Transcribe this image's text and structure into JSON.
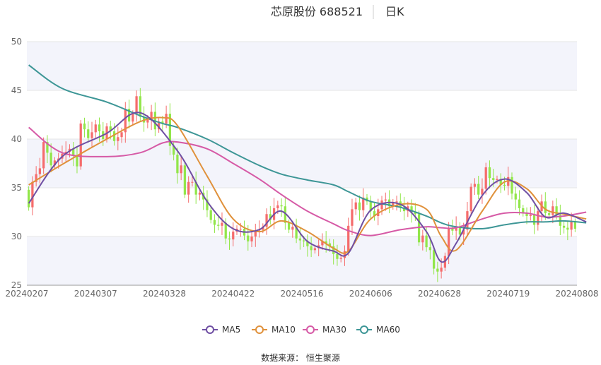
{
  "header": {
    "stock_name_code": "芯原股份 688521",
    "period": "日K"
  },
  "source_text": "数据来源： 恒生聚源",
  "chart_data": {
    "type": "candlestick",
    "x_tick_labels": [
      "20240207",
      "20240307",
      "20240328",
      "20240422",
      "20240516",
      "20240606",
      "20240628",
      "20240719",
      "20240808"
    ],
    "y_tick_labels": [
      "25",
      "30",
      "35",
      "40",
      "45",
      "50"
    ],
    "ylim": [
      25,
      50
    ],
    "grid": "horizontal",
    "legend_position": "bottom-center",
    "colors": {
      "up": "#f56c6c",
      "down": "#92e64a"
    },
    "legend": [
      {
        "name": "MA5",
        "color": "#6f4fa3"
      },
      {
        "name": "MA10",
        "color": "#e0913b"
      },
      {
        "name": "MA30",
        "color": "#d65aa6"
      },
      {
        "name": "MA60",
        "color": "#3d9696"
      }
    ],
    "closes": [
      33.0,
      35.6,
      36.4,
      37.0,
      39.7,
      38.6,
      37.3,
      37.8,
      38.0,
      38.5,
      38.7,
      39.0,
      38.3,
      37.2,
      41.6,
      41.0,
      40.1,
      40.7,
      41.5,
      40.8,
      40.0,
      41.3,
      40.8,
      39.8,
      40.2,
      40.7,
      43.1,
      41.8,
      42.6,
      44.4,
      42.3,
      41.7,
      42.0,
      42.8,
      41.0,
      41.8,
      41.6,
      42.6,
      39.3,
      38.4,
      36.5,
      37.3,
      34.3,
      35.6,
      35.6,
      34.3,
      34.5,
      33.8,
      32.7,
      31.7,
      31.2,
      31.1,
      31.4,
      29.8,
      29.7,
      30.5,
      30.8,
      30.8,
      30.1,
      29.5,
      30.0,
      30.6,
      30.7,
      31.0,
      32.3,
      31.7,
      32.9,
      33.2,
      33.1,
      31.4,
      30.7,
      31.0,
      29.8,
      29.6,
      29.5,
      29.0,
      28.6,
      28.8,
      29.1,
      29.5,
      29.3,
      29.0,
      28.2,
      27.7,
      27.8,
      28.5,
      31.1,
      32.8,
      33.5,
      32.7,
      34.0,
      33.6,
      32.6,
      32.1,
      32.8,
      33.7,
      33.8,
      33.1,
      33.5,
      33.6,
      33.0,
      32.6,
      33.1,
      32.5,
      32.3,
      29.4,
      30.1,
      28.9,
      28.6,
      26.7,
      26.4,
      26.8,
      28.0,
      30.9,
      30.6,
      31.0,
      30.2,
      30.7,
      32.6,
      35.1,
      35.4,
      34.3,
      34.9,
      37.1,
      36.0,
      35.8,
      35.9,
      35.3,
      35.2,
      36.1,
      34.4,
      33.8,
      32.9,
      32.4,
      32.1,
      32.2,
      31.2,
      32.6,
      33.6,
      32.4,
      32.2,
      33.1,
      32.2,
      31.1,
      30.9,
      30.7,
      31.5,
      30.8
    ],
    "ma5_anchors": [
      [
        0,
        33.4
      ],
      [
        9,
        38.2
      ],
      [
        21,
        40.6
      ],
      [
        30,
        42.7
      ],
      [
        40,
        38.8
      ],
      [
        48,
        33.6
      ],
      [
        55,
        30.8
      ],
      [
        62,
        30.7
      ],
      [
        68,
        32.6
      ],
      [
        75,
        29.5
      ],
      [
        82,
        28.5
      ],
      [
        86,
        28.3
      ],
      [
        92,
        32.7
      ],
      [
        100,
        33.3
      ],
      [
        107,
        30.5
      ],
      [
        111,
        27.4
      ],
      [
        115,
        29.3
      ],
      [
        122,
        34.2
      ],
      [
        128,
        35.9
      ],
      [
        134,
        34.5
      ],
      [
        139,
        32.0
      ],
      [
        144,
        32.4
      ],
      [
        150,
        31.5
      ]
    ],
    "ma10_anchors": [
      [
        0,
        35.3
      ],
      [
        9,
        37.4
      ],
      [
        21,
        40.0
      ],
      [
        30,
        41.8
      ],
      [
        36,
        42.2
      ],
      [
        40,
        41.4
      ],
      [
        48,
        36.2
      ],
      [
        55,
        31.8
      ],
      [
        62,
        30.5
      ],
      [
        68,
        31.6
      ],
      [
        75,
        30.5
      ],
      [
        82,
        28.8
      ],
      [
        86,
        28.5
      ],
      [
        92,
        31.8
      ],
      [
        100,
        33.3
      ],
      [
        107,
        32.8
      ],
      [
        111,
        30.0
      ],
      [
        115,
        28.6
      ],
      [
        122,
        32.6
      ],
      [
        128,
        35.6
      ],
      [
        134,
        34.9
      ],
      [
        139,
        32.8
      ],
      [
        144,
        32.3
      ],
      [
        150,
        31.8
      ]
    ],
    "ma30_anchors": [
      [
        0,
        41.2
      ],
      [
        9,
        38.6
      ],
      [
        21,
        38.2
      ],
      [
        30,
        38.6
      ],
      [
        36,
        39.6
      ],
      [
        40,
        39.7
      ],
      [
        48,
        39.0
      ],
      [
        55,
        37.5
      ],
      [
        62,
        35.9
      ],
      [
        68,
        34.3
      ],
      [
        75,
        32.6
      ],
      [
        82,
        31.3
      ],
      [
        86,
        30.6
      ],
      [
        92,
        30.1
      ],
      [
        100,
        30.7
      ],
      [
        107,
        31.0
      ],
      [
        111,
        30.9
      ],
      [
        115,
        30.9
      ],
      [
        122,
        31.8
      ],
      [
        128,
        32.4
      ],
      [
        134,
        32.4
      ],
      [
        139,
        32.0
      ],
      [
        144,
        32.1
      ],
      [
        150,
        32.5
      ]
    ],
    "ma60_anchors": [
      [
        0,
        47.6
      ],
      [
        9,
        45.2
      ],
      [
        21,
        43.8
      ],
      [
        30,
        42.4
      ],
      [
        36,
        41.6
      ],
      [
        40,
        41.2
      ],
      [
        48,
        40.0
      ],
      [
        55,
        38.6
      ],
      [
        62,
        37.3
      ],
      [
        68,
        36.4
      ],
      [
        75,
        35.8
      ],
      [
        82,
        35.3
      ],
      [
        86,
        34.6
      ],
      [
        92,
        33.6
      ],
      [
        100,
        33.0
      ],
      [
        107,
        32.1
      ],
      [
        111,
        31.4
      ],
      [
        115,
        31.0
      ],
      [
        122,
        30.8
      ],
      [
        128,
        31.2
      ],
      [
        134,
        31.5
      ],
      [
        139,
        31.5
      ],
      [
        144,
        31.6
      ],
      [
        150,
        31.4
      ]
    ]
  }
}
